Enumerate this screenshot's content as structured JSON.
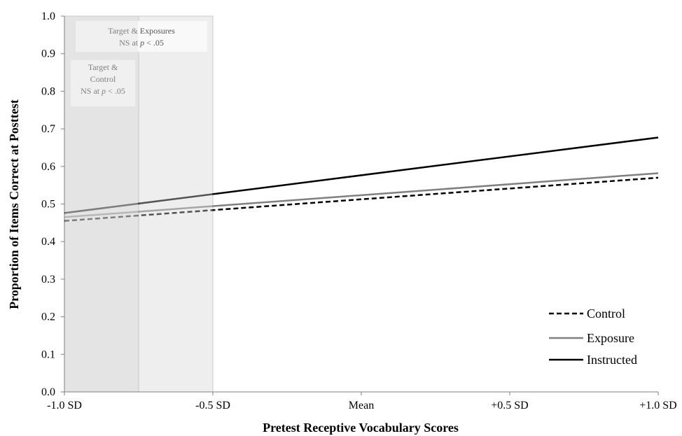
{
  "chart_data": {
    "type": "line",
    "categories": [
      "-1.0 SD",
      "-0.5 SD",
      "Mean",
      "+0.5 SD",
      "+1.0 SD"
    ],
    "x": [
      -1.0,
      -0.5,
      0,
      0.5,
      1.0
    ],
    "xlabel": "Pretest Receptive Vocabulary Scores",
    "ylabel": "Proportion of Items Correct at Posttest",
    "ylim": [
      0.0,
      1.0
    ],
    "yticks": [
      "0.0",
      "0.1",
      "0.2",
      "0.3",
      "0.4",
      "0.5",
      "0.6",
      "0.7",
      "0.8",
      "0.9",
      "1.0"
    ],
    "series": [
      {
        "name": "Control",
        "x": [
          -1.0,
          1.0
        ],
        "values": [
          0.455,
          0.57
        ],
        "style": "dashed",
        "color": "#000000"
      },
      {
        "name": "Exposure",
        "x": [
          -1.0,
          1.0
        ],
        "values": [
          0.465,
          0.582
        ],
        "style": "solid",
        "color": "#808080"
      },
      {
        "name": "Instructed",
        "x": [
          -1.0,
          1.0
        ],
        "values": [
          0.476,
          0.677
        ],
        "style": "solid",
        "color": "#000000"
      }
    ],
    "regions": [
      {
        "x_from": -1.0,
        "x_to": -0.75,
        "color": "#e4e4e4",
        "label_lines": [
          "Target &",
          "Control",
          "NS at p < .05"
        ]
      },
      {
        "x_from": -0.75,
        "x_to": -0.5,
        "color": "#efefef",
        "label_lines": [
          "Target & Exposures",
          "NS at p < .05"
        ]
      }
    ],
    "legend": {
      "position": "bottom-right"
    },
    "grid": false
  }
}
